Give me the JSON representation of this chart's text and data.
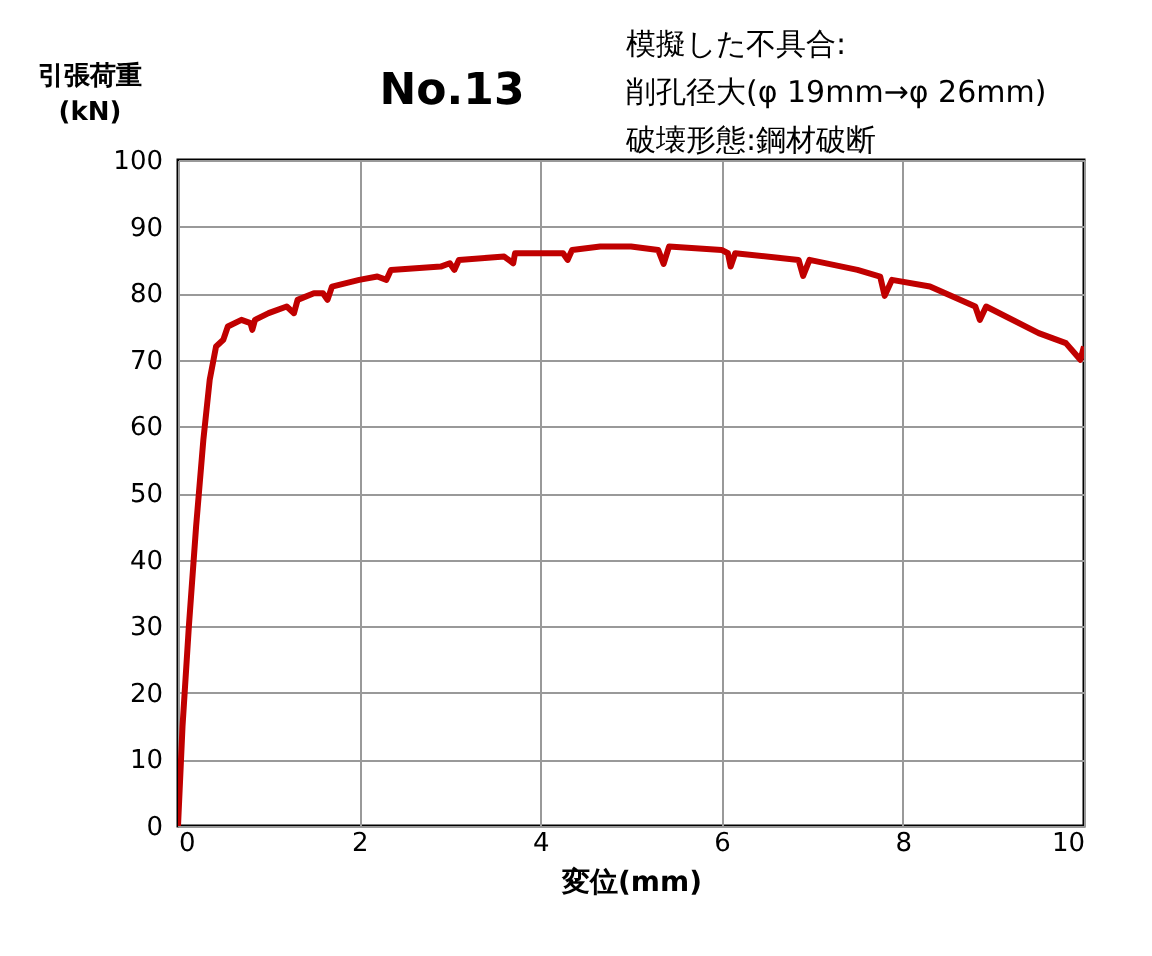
{
  "chart_data": {
    "type": "line",
    "title": "No.13",
    "xlabel": "変位(mm)",
    "ylabel": "引張荷重\n(kN)",
    "annotations": [
      "模擬した不具合:",
      "削孔径大(φ 19mm→φ 26mm)",
      "破壊形態:鋼材破断"
    ],
    "xlim": [
      0,
      10
    ],
    "ylim": [
      0,
      100
    ],
    "xticks": [
      0,
      2,
      4,
      6,
      8,
      10
    ],
    "yticks": [
      0,
      10,
      20,
      30,
      40,
      50,
      60,
      70,
      80,
      90,
      100
    ],
    "grid": true,
    "legend": false,
    "marker": "none",
    "line_style": "solid",
    "series": [
      {
        "color": "#c00000",
        "x": [
          0,
          0.05,
          0.12,
          0.2,
          0.28,
          0.35,
          0.42,
          0.5,
          0.55,
          0.7,
          0.8,
          0.82,
          0.85,
          1.0,
          1.2,
          1.28,
          1.32,
          1.5,
          1.6,
          1.65,
          1.7,
          2.0,
          2.2,
          2.3,
          2.35,
          2.9,
          3.0,
          3.05,
          3.1,
          3.6,
          3.7,
          3.72,
          4.0,
          4.25,
          4.3,
          4.35,
          4.66,
          5.0,
          5.3,
          5.36,
          5.42,
          6.0,
          6.07,
          6.1,
          6.15,
          6.85,
          6.9,
          6.97,
          7.5,
          7.75,
          7.8,
          7.88,
          8.3,
          8.8,
          8.85,
          8.92,
          9.5,
          9.8,
          9.96,
          10
        ],
        "values": [
          0,
          15,
          30,
          45,
          58,
          67,
          72,
          73,
          75,
          76,
          75.5,
          74.5,
          76,
          77,
          78,
          77,
          79,
          80,
          80,
          79,
          81,
          82,
          82.5,
          82,
          83.5,
          84,
          84.5,
          83.5,
          85,
          85.5,
          84.5,
          86,
          86,
          86,
          85,
          86.5,
          87,
          87,
          86.5,
          84.4,
          87,
          86.5,
          86,
          84,
          86,
          85,
          82.6,
          85,
          83.5,
          82.5,
          79.6,
          82,
          81,
          78,
          76,
          78,
          74,
          72.5,
          70,
          72
        ]
      }
    ]
  }
}
